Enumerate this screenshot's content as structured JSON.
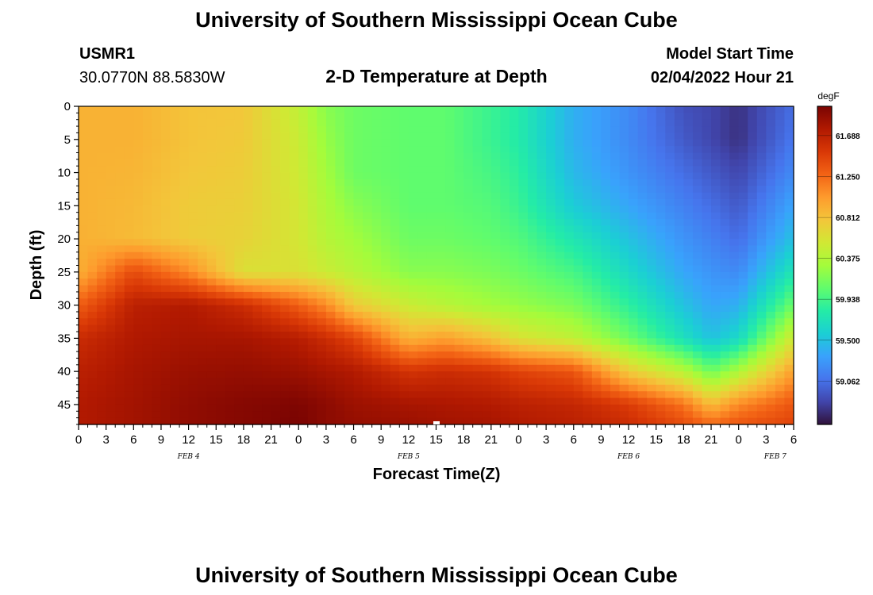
{
  "page": {
    "title": "University of Southern Mississippi Ocean Cube",
    "station_id": "USMR1",
    "coords": "30.0770N  88.5830W",
    "model_start_label": "Model Start Time",
    "model_start_value": "02/04/2022 Hour 21",
    "footer_title": "University of Southern Mississippi Ocean Cube"
  },
  "chart_data": {
    "type": "heatmap",
    "title": "2-D Temperature at Depth",
    "xlabel": "Forecast Time(Z)",
    "ylabel": "Depth (ft)",
    "x_range_hours_from_feb4_00z": [
      0,
      78
    ],
    "y_range_ft": [
      0,
      48
    ],
    "y_ticks": [
      0,
      5,
      10,
      15,
      20,
      25,
      30,
      35,
      40,
      45
    ],
    "x_tick_labels": [
      "0",
      "3",
      "6",
      "9",
      "12",
      "15",
      "18",
      "21",
      "0",
      "3",
      "6",
      "9",
      "12",
      "15",
      "18",
      "21",
      "0",
      "3",
      "6",
      "9",
      "12",
      "15",
      "18",
      "21",
      "0",
      "3",
      "6"
    ],
    "date_labels": [
      {
        "text": "FEB 4",
        "hour": 12
      },
      {
        "text": "FEB 5",
        "hour": 36
      },
      {
        "text": "FEB 6",
        "hour": 60
      },
      {
        "text": "FEB 7",
        "hour": 76
      }
    ],
    "colorbar": {
      "unit": "degF",
      "min": 58.6,
      "max": 62.0,
      "ticks": [
        "61.688",
        "61.250",
        "60.812",
        "60.375",
        "59.938",
        "59.500",
        "59.062"
      ],
      "colors": [
        "#30123b",
        "#4145ab",
        "#4675ed",
        "#39a2fc",
        "#1bcfd4",
        "#24eca6",
        "#61fc6c",
        "#a4fc3b",
        "#d1e834",
        "#f3c63a",
        "#fe9b2d",
        "#f36315",
        "#d93806",
        "#b11901",
        "#7a0402"
      ]
    },
    "grid_hours": [
      0,
      6,
      12,
      18,
      24,
      27,
      30,
      36,
      40,
      45,
      48,
      54,
      60,
      66,
      69,
      72,
      78
    ],
    "grid_depths": [
      0,
      5,
      10,
      15,
      20,
      25,
      30,
      35,
      40,
      45,
      48
    ],
    "temperature_degF": [
      [
        60.9,
        60.9,
        60.9,
        60.9,
        60.91,
        60.91,
        61.3,
        61.61,
        61.7,
        61.75,
        61.75
      ],
      [
        60.9,
        60.9,
        60.88,
        60.86,
        60.85,
        61.4,
        61.7,
        61.76,
        61.8,
        61.82,
        61.82
      ],
      [
        60.8,
        60.8,
        60.78,
        60.75,
        60.75,
        61.1,
        61.75,
        61.8,
        61.86,
        61.9,
        61.9
      ],
      [
        60.78,
        60.76,
        60.74,
        60.72,
        60.7,
        60.6,
        61.6,
        61.8,
        61.88,
        61.95,
        61.95
      ],
      [
        60.45,
        60.5,
        60.52,
        60.55,
        60.56,
        60.6,
        61.3,
        61.72,
        61.85,
        61.98,
        62.0
      ],
      [
        60.2,
        60.25,
        60.3,
        60.35,
        60.4,
        60.5,
        61.1,
        61.6,
        61.8,
        61.92,
        61.92
      ],
      [
        60.1,
        60.1,
        60.1,
        60.2,
        60.3,
        60.4,
        60.75,
        61.45,
        61.75,
        61.85,
        61.88
      ],
      [
        60.05,
        60.05,
        60.05,
        60.05,
        60.1,
        60.2,
        60.5,
        60.9,
        61.55,
        61.8,
        61.85
      ],
      [
        60.05,
        60.05,
        60.05,
        60.05,
        60.1,
        60.2,
        60.4,
        61.0,
        61.6,
        61.78,
        61.82
      ],
      [
        59.9,
        59.9,
        59.95,
        60.0,
        60.05,
        60.15,
        60.3,
        60.8,
        61.55,
        61.75,
        61.8
      ],
      [
        59.8,
        59.8,
        59.85,
        59.9,
        60.0,
        60.1,
        60.25,
        60.6,
        61.45,
        61.7,
        61.75
      ],
      [
        59.4,
        59.4,
        59.45,
        59.55,
        59.75,
        59.95,
        60.15,
        60.45,
        61.35,
        61.65,
        61.7
      ],
      [
        59.2,
        59.2,
        59.25,
        59.35,
        59.5,
        59.65,
        59.85,
        60.1,
        60.75,
        61.5,
        61.6
      ],
      [
        58.9,
        58.95,
        59.05,
        59.15,
        59.25,
        59.35,
        59.5,
        59.7,
        60.4,
        61.2,
        61.4
      ],
      [
        58.85,
        58.85,
        58.95,
        59.05,
        59.15,
        59.25,
        59.35,
        59.5,
        60.1,
        60.85,
        61.25
      ],
      [
        58.75,
        58.75,
        58.85,
        58.95,
        59.05,
        59.2,
        59.4,
        59.65,
        60.35,
        61.1,
        61.35
      ],
      [
        59.05,
        59.1,
        59.2,
        59.35,
        59.5,
        59.75,
        60.1,
        60.55,
        61.0,
        61.35,
        61.45
      ]
    ]
  }
}
